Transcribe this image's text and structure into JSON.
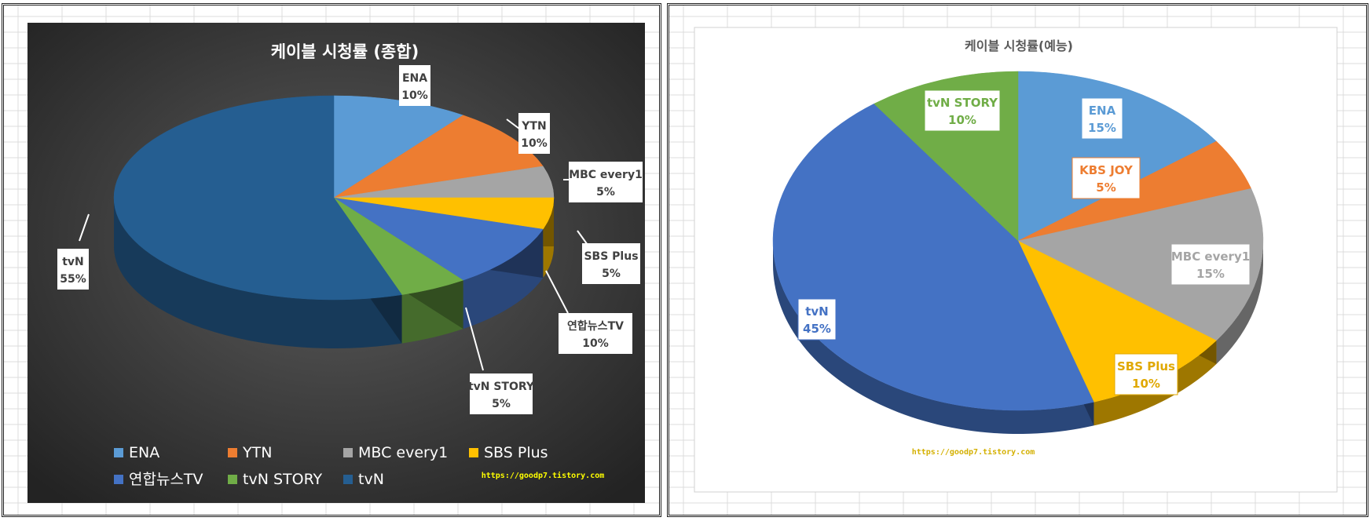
{
  "chart_data": [
    {
      "type": "pie",
      "title": "케이블 시청률 (종합)",
      "categories": [
        "ENA",
        "YTN",
        "MBC every1",
        "SBS Plus",
        "연합뉴스TV",
        "tvN STORY",
        "tvN"
      ],
      "values": [
        10,
        10,
        5,
        5,
        10,
        5,
        55
      ],
      "labels": [
        "10%",
        "10%",
        "5%",
        "5%",
        "10%",
        "5%",
        "55%"
      ],
      "colors": [
        "#5b9bd5",
        "#ed7d31",
        "#a5a5a5",
        "#ffc000",
        "#4472c4",
        "#70ad47",
        "#255e91"
      ],
      "legend": "bottom",
      "watermark": "https://goodp7.tistory.com",
      "background": "dark"
    },
    {
      "type": "pie",
      "title": "케이블 시청률(예능)",
      "categories": [
        "ENA",
        "KBS JOY",
        "MBC every1",
        "SBS Plus",
        "tvN",
        "tvN STORY"
      ],
      "values": [
        15,
        5,
        15,
        10,
        45,
        10
      ],
      "labels": [
        "15%",
        "5%",
        "15%",
        "10%",
        "45%",
        "10%"
      ],
      "colors": [
        "#5b9bd5",
        "#ed7d31",
        "#a5a5a5",
        "#ffc000",
        "#4472c4",
        "#70ad47"
      ],
      "legend": "none",
      "watermark": "https://goodp7.tistory.com",
      "background": "light"
    }
  ]
}
